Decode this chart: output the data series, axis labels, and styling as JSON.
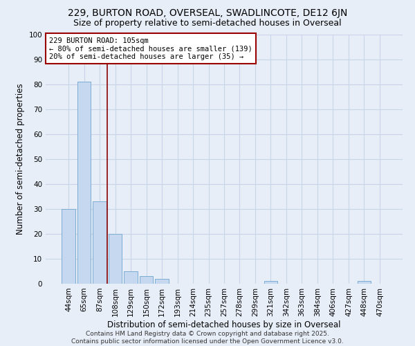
{
  "title_line1": "229, BURTON ROAD, OVERSEAL, SWADLINCOTE, DE12 6JN",
  "title_line2": "Size of property relative to semi-detached houses in Overseal",
  "xlabel": "Distribution of semi-detached houses by size in Overseal",
  "ylabel": "Number of semi-detached properties",
  "categories": [
    "44sqm",
    "65sqm",
    "87sqm",
    "108sqm",
    "129sqm",
    "150sqm",
    "172sqm",
    "193sqm",
    "214sqm",
    "235sqm",
    "257sqm",
    "278sqm",
    "299sqm",
    "321sqm",
    "342sqm",
    "363sqm",
    "384sqm",
    "406sqm",
    "427sqm",
    "448sqm",
    "470sqm"
  ],
  "values": [
    30,
    81,
    33,
    20,
    5,
    3,
    2,
    0,
    0,
    0,
    0,
    0,
    0,
    1,
    0,
    0,
    0,
    0,
    0,
    1,
    0
  ],
  "bar_color": "#c5d8f0",
  "bar_edge_color": "#7aadd4",
  "vline_x": 3.0,
  "vline_color": "#8b0000",
  "annotation_line1": "229 BURTON ROAD: 105sqm",
  "annotation_line2": "← 80% of semi-detached houses are smaller (139)",
  "annotation_line3": "20% of semi-detached houses are larger (35) →",
  "annotation_box_color": "#ffffff",
  "annotation_box_edge": "#990000",
  "ylim": [
    0,
    100
  ],
  "yticks": [
    0,
    10,
    20,
    30,
    40,
    50,
    60,
    70,
    80,
    90,
    100
  ],
  "grid_color": "#c8d4e8",
  "background_color": "#e8eef8",
  "footer_text": "Contains HM Land Registry data © Crown copyright and database right 2025.\nContains public sector information licensed under the Open Government Licence v3.0.",
  "title_fontsize": 10,
  "subtitle_fontsize": 9,
  "axis_label_fontsize": 8.5,
  "tick_fontsize": 7.5,
  "annotation_fontsize": 7.5,
  "footer_fontsize": 6.5
}
